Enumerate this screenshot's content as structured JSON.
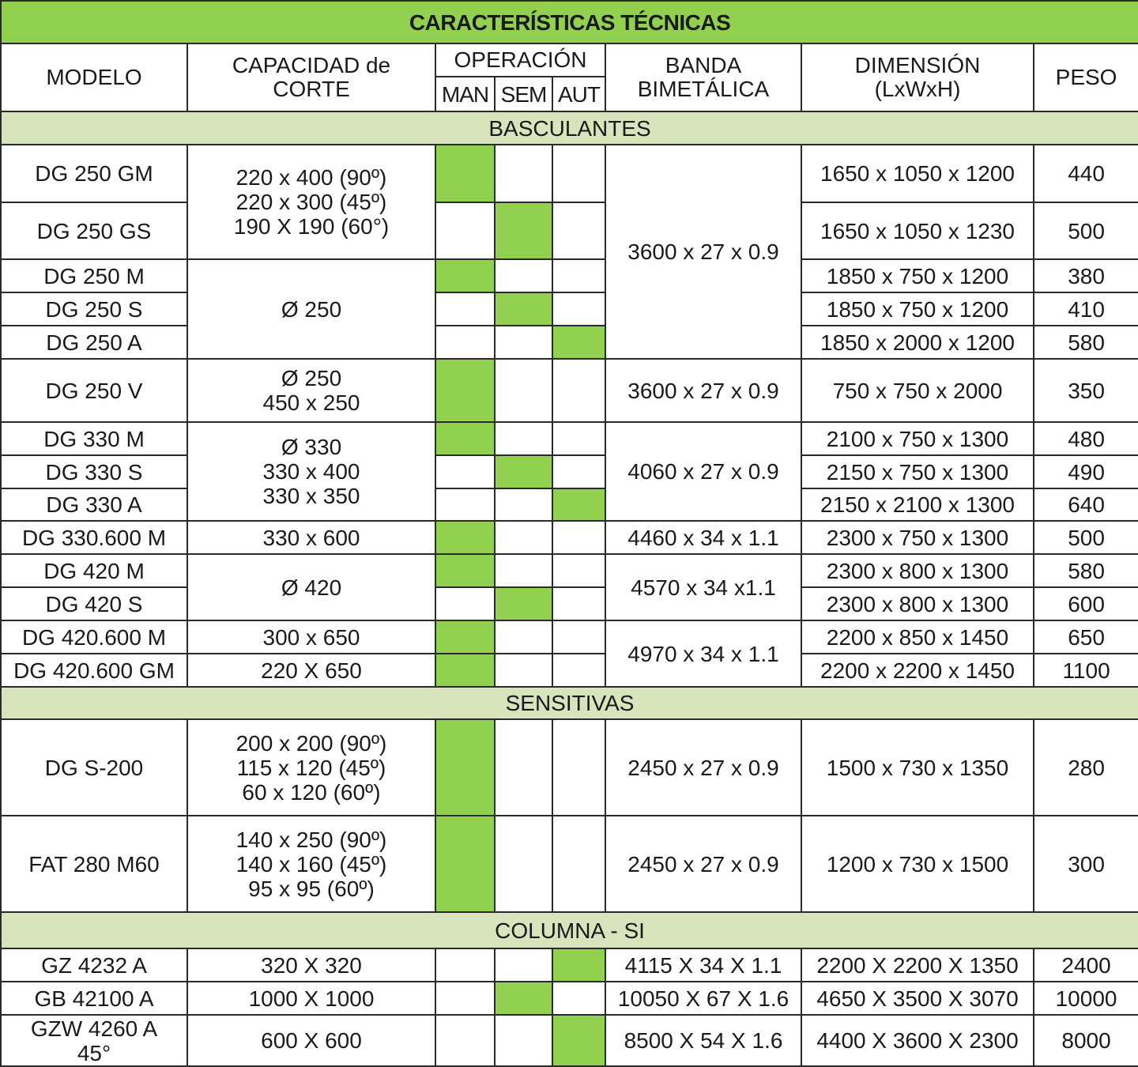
{
  "title": "CARACTERÍSTICAS TÉCNICAS",
  "colors": {
    "accent_green": "#92d050",
    "section_green": "#d8e4bc",
    "border": "#2a2a2a"
  },
  "headers": {
    "model": "MODELO",
    "capacity": "CAPACIDAD de\nCORTE",
    "operation": "OPERACIÓN",
    "operation_modes": [
      "MAN",
      "SEM",
      "AUT"
    ],
    "band": "BANDA\nBIMETÁLICA",
    "dimension": "DIMENSIÓN\n(LxWxH)",
    "weight": "PESO"
  },
  "sections": [
    {
      "name": "BASCULANTES",
      "rows": [
        {
          "model": "DG 250 GM",
          "capacity": "220 x 400 (90º)\n220 x 300 (45º)\n190 X 190 (60°)",
          "capacity_span": 2,
          "operation": "MAN",
          "band": "3600 x 27 x 0.9",
          "band_span": 5,
          "dimension": "1650 x 1050 x 1200",
          "weight": "440"
        },
        {
          "model": "DG 250 GS",
          "operation": "SEM",
          "dimension": "1650 x 1050 x 1230",
          "weight": "500"
        },
        {
          "model": "DG 250 M",
          "capacity": "Ø 250",
          "capacity_span": 3,
          "operation": "MAN",
          "dimension": "1850 x 750 x 1200",
          "weight": "380"
        },
        {
          "model": "DG 250 S",
          "operation": "SEM",
          "dimension": "1850 x 750 x 1200",
          "weight": "410"
        },
        {
          "model": "DG 250 A",
          "operation": "AUT",
          "dimension": "1850 x 2000 x 1200",
          "weight": "580"
        },
        {
          "model": "DG 250 V",
          "capacity": "Ø 250\n450 x 250",
          "capacity_span": 1,
          "operation": "MAN",
          "band": "3600 x 27 x 0.9",
          "band_span": 1,
          "dimension": "750 x 750 x 2000",
          "weight": "350"
        },
        {
          "model": "DG 330 M",
          "capacity": "Ø 330\n330 x 400\n330 x 350",
          "capacity_span": 3,
          "operation": "MAN",
          "band": "4060 x 27 x 0.9",
          "band_span": 3,
          "dimension": "2100 x 750 x 1300",
          "weight": "480"
        },
        {
          "model": "DG 330 S",
          "operation": "SEM",
          "dimension": "2150 x 750 x 1300",
          "weight": "490"
        },
        {
          "model": "DG 330 A",
          "operation": "AUT",
          "dimension": "2150 x 2100 x 1300",
          "weight": "640"
        },
        {
          "model": "DG 330.600 M",
          "capacity": "330 x 600",
          "capacity_span": 1,
          "operation": "MAN",
          "band": "4460 x 34 x 1.1",
          "band_span": 1,
          "dimension": "2300 x 750 x 1300",
          "weight": "500"
        },
        {
          "model": "DG 420 M",
          "capacity": "Ø 420",
          "capacity_span": 2,
          "operation": "MAN",
          "band": "4570 x 34 x1.1",
          "band_span": 2,
          "dimension": "2300 x 800 x 1300",
          "weight": "580"
        },
        {
          "model": "DG 420 S",
          "operation": "SEM",
          "dimension": "2300 x 800 x 1300",
          "weight": "600"
        },
        {
          "model": "DG 420.600 M",
          "capacity": "300 x 650",
          "capacity_span": 1,
          "operation": "MAN",
          "band": "4970 x 34 x 1.1",
          "band_span": 2,
          "dimension": "2200 x 850 x 1450",
          "weight": "650"
        },
        {
          "model": "DG 420.600 GM",
          "capacity": "220 X 650",
          "capacity_span": 1,
          "operation": "MAN",
          "dimension": "2200 x 2200 x 1450",
          "weight": "1100"
        }
      ]
    },
    {
      "name": "SENSITIVAS",
      "rows": [
        {
          "model": "DG S-200",
          "capacity": "200 x 200 (90º)\n115 x 120 (45º)\n60 x 120 (60º)",
          "capacity_span": 1,
          "operation": "MAN",
          "band": "2450 x 27 x 0.9",
          "band_span": 1,
          "dimension": "1500 x 730 x 1350",
          "weight": "280"
        },
        {
          "model": "FAT 280 M60",
          "capacity": "140 x 250 (90º)\n140 x 160 (45º)\n95 x 95 (60º)",
          "capacity_span": 1,
          "operation": "MAN",
          "band": "2450 x 27 x 0.9",
          "band_span": 1,
          "dimension": "1200 x 730 x 1500",
          "weight": "300"
        }
      ]
    },
    {
      "name": "COLUMNA - SI",
      "rows": [
        {
          "model": "GZ 4232 A",
          "capacity": "320 X 320",
          "capacity_span": 1,
          "operation": "AUT",
          "band": "4115 X 34 X 1.1",
          "band_span": 1,
          "dimension": "2200 X 2200 X 1350",
          "weight": "2400"
        },
        {
          "model": "GB 42100 A",
          "capacity": "1000 X 1000",
          "capacity_span": 1,
          "operation": "SEM",
          "band": "10050 X 67 X 1.6",
          "band_span": 1,
          "dimension": "4650 X 3500 X 3070",
          "weight": "10000"
        },
        {
          "model": "GZW 4260 A\n45°",
          "capacity": "600 X 600",
          "capacity_span": 1,
          "operation": "AUT",
          "band": "8500 X 54 X 1.6",
          "band_span": 1,
          "dimension": "4400 X 3600 X 2300",
          "weight": "8000"
        }
      ]
    }
  ]
}
